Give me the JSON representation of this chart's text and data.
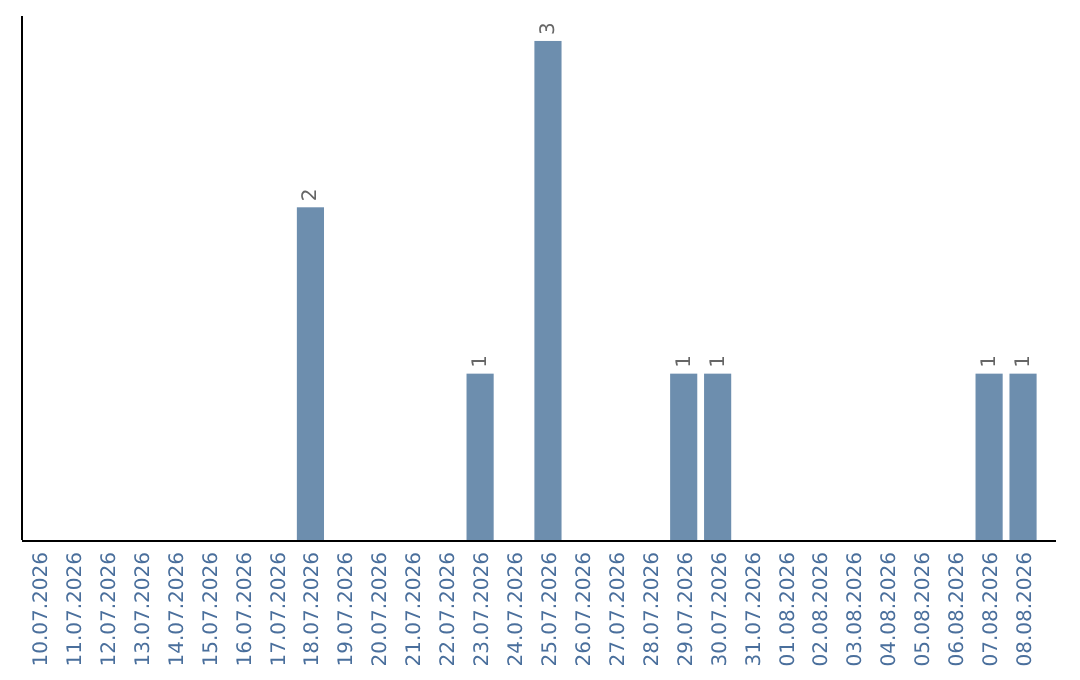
{
  "chart_data": {
    "type": "bar",
    "categories": [
      "10.07.2026",
      "11.07.2026",
      "12.07.2026",
      "13.07.2026",
      "14.07.2026",
      "15.07.2026",
      "16.07.2026",
      "17.07.2026",
      "18.07.2026",
      "19.07.2026",
      "20.07.2026",
      "21.07.2026",
      "22.07.2026",
      "23.07.2026",
      "24.07.2026",
      "25.07.2026",
      "26.07.2026",
      "27.07.2026",
      "28.07.2026",
      "29.07.2026",
      "30.07.2026",
      "31.07.2026",
      "01.08.2026",
      "02.08.2026",
      "03.08.2026",
      "04.08.2026",
      "05.08.2026",
      "06.08.2026",
      "07.08.2026",
      "08.08.2026"
    ],
    "values": [
      0,
      0,
      0,
      0,
      0,
      0,
      0,
      0,
      2,
      0,
      0,
      0,
      0,
      1,
      0,
      3,
      0,
      0,
      0,
      1,
      1,
      0,
      0,
      0,
      0,
      0,
      0,
      0,
      1,
      1
    ],
    "value_labels": [
      null,
      null,
      null,
      null,
      null,
      null,
      null,
      null,
      "2",
      null,
      null,
      null,
      null,
      "1",
      null,
      "3",
      null,
      null,
      null,
      "1",
      "1",
      null,
      null,
      null,
      null,
      null,
      null,
      null,
      "1",
      "1"
    ],
    "color": "#6d8eae",
    "tick_labels": "x"
  }
}
